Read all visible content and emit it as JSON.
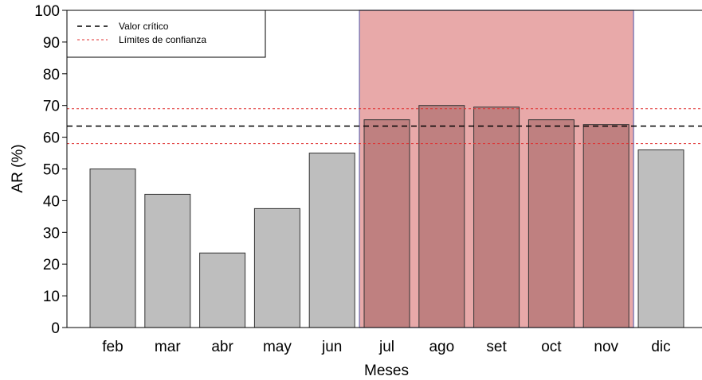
{
  "chart_data": {
    "type": "bar",
    "categories": [
      "feb",
      "mar",
      "abr",
      "may",
      "jun",
      "jul",
      "ago",
      "set",
      "oct",
      "nov",
      "dic"
    ],
    "values": [
      50,
      42,
      23.5,
      37.5,
      55,
      65.5,
      70,
      69.5,
      65.5,
      64,
      56
    ],
    "highlighted_categories": [
      "jul",
      "ago",
      "set",
      "oct",
      "nov"
    ],
    "xlabel": "Meses",
    "ylabel": "AR (%)",
    "ylim": [
      0,
      100
    ],
    "yticks": [
      0,
      10,
      20,
      30,
      40,
      50,
      60,
      70,
      80,
      90,
      100
    ],
    "reference_lines": [
      {
        "name": "Valor crítico",
        "value": 63.5,
        "style": "dashed",
        "color": "#000000"
      },
      {
        "name": "Límites de confianza",
        "value": 69,
        "style": "dotted",
        "color": "#e03030"
      },
      {
        "name": "Límites de confianza",
        "value": 58,
        "style": "dotted",
        "color": "#e03030"
      }
    ],
    "legend": {
      "placement": "top-left",
      "entries": [
        {
          "label": "Valor crítico",
          "color": "#000000",
          "style": "dashed"
        },
        {
          "label": "Límites de confianza",
          "color": "#e03030",
          "style": "dotted"
        }
      ]
    },
    "colors": {
      "bar": "#bebebe",
      "bar_highlight": "#bf8080",
      "highlight_fill": "#e8a9a9",
      "highlight_border": "#6b6bb0"
    }
  }
}
